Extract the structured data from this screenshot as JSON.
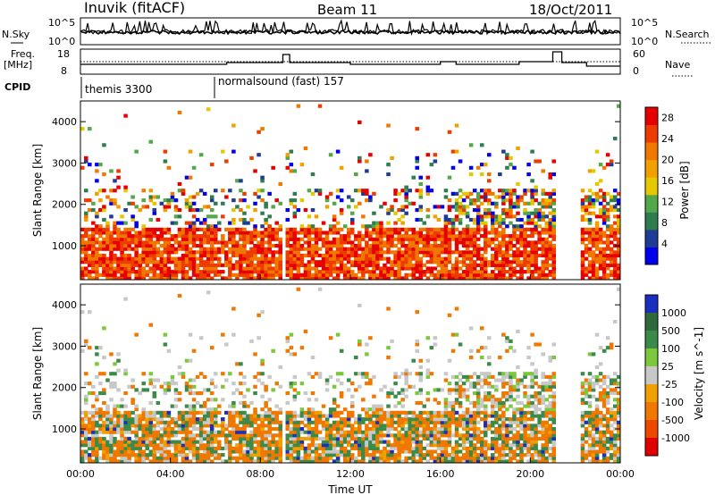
{
  "header": {
    "station": "Inuvik (fitACF)",
    "beam": "Beam 11",
    "date": "18/Oct/2011"
  },
  "noise_panel": {
    "left_label": "N.Sky",
    "right_label": "N.Search",
    "left_ticks": [
      "10^5",
      "10^0"
    ],
    "right_ticks": [
      "10^5",
      "10^0"
    ]
  },
  "freq_panel": {
    "left_label_1": "Freq.",
    "left_label_2": "[MHz]",
    "left_ticks": [
      "18",
      "8"
    ],
    "right_label": "Nave",
    "right_ticks": [
      "60",
      "0"
    ]
  },
  "cpid": {
    "label": "CPID",
    "programs": [
      "themis 3300",
      "normalsound (fast) 157"
    ]
  },
  "colors": {
    "power_scale": [
      "#0000ee",
      "#1e3c96",
      "#2f7d4f",
      "#55a84a",
      "#e6c800",
      "#f2a000",
      "#f07800",
      "#ee3c00",
      "#e60000"
    ],
    "velocity_scale": [
      "#1a2fbf",
      "#2f6a3c",
      "#3b8a4a",
      "#7cc83c",
      "#c8c8c8",
      "#f0a000",
      "#f07800",
      "#ee4800",
      "#e00000"
    ]
  },
  "chart_data": [
    {
      "type": "heatmap",
      "name": "power",
      "xlabel": "",
      "ylabel": "Slant Range [km]",
      "xlim": [
        "00:00",
        "24:00"
      ],
      "ylim": [
        180,
        4500
      ],
      "yticks": [
        1000,
        2000,
        3000,
        4000
      ],
      "colorbar_label": "Power [dB]",
      "colorbar_ticks": [
        4,
        8,
        12,
        16,
        20,
        24,
        28
      ],
      "colorbar_range": [
        0,
        30
      ]
    },
    {
      "type": "heatmap",
      "name": "velocity",
      "xlabel": "Time UT",
      "ylabel": "Slant Range [km]",
      "xlim": [
        "00:00",
        "24:00"
      ],
      "ylim": [
        180,
        4500
      ],
      "yticks": [
        1000,
        2000,
        3000,
        4000
      ],
      "xticks": [
        "00:00",
        "04:00",
        "08:00",
        "12:00",
        "16:00",
        "20:00",
        "00:00"
      ],
      "colorbar_label": "Velocity [m s^-1]",
      "colorbar_ticks": [
        "1000",
        "500",
        "100",
        "25",
        "-25",
        "-100",
        "-500",
        "-1000"
      ]
    }
  ]
}
